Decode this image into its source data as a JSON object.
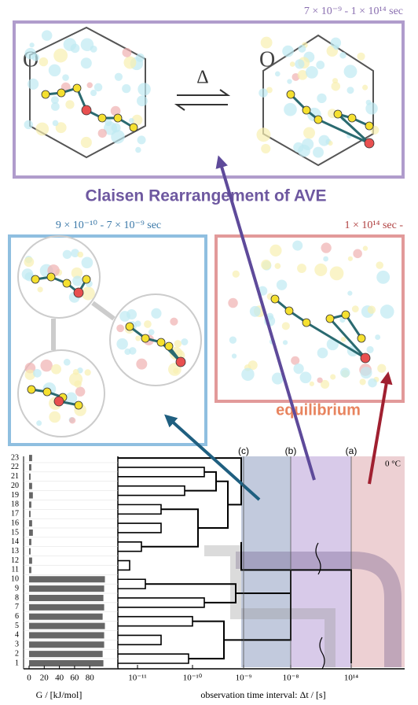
{
  "panels": {
    "top": {
      "time_label": "7 × 10⁻⁹ - 1 × 10¹⁴  sec",
      "atom_left": "O",
      "atom_right": "O",
      "arrow_label": "Δ"
    },
    "title": "Claisen Rearrangement of  AVE",
    "left": {
      "time_label": "9 × 10⁻¹⁰ - 7 × 10⁻⁹ sec"
    },
    "right": {
      "time_label": "1 × 10¹⁴  sec -",
      "caption": "equilibrium"
    }
  },
  "plot": {
    "states": [
      1,
      2,
      3,
      4,
      5,
      6,
      7,
      8,
      9,
      10,
      11,
      12,
      13,
      14,
      15,
      16,
      17,
      18,
      19,
      20,
      21,
      22,
      23
    ],
    "energies": [
      98,
      97,
      99,
      99,
      100,
      97,
      99,
      98,
      99,
      100,
      3,
      4,
      2,
      3,
      5,
      4,
      2,
      3,
      5,
      4,
      2,
      3,
      4
    ],
    "energy_lim": [
      0,
      115
    ],
    "energy_ticks": [
      0,
      20,
      40,
      60,
      80
    ],
    "energy_label": "G / [kJ/mol]",
    "time_ticks": [
      "10⁻¹¹",
      "10⁻¹⁰",
      "10⁻⁹",
      "10⁻⁸",
      "10¹⁴"
    ],
    "time_label": "observation time interval: Δt / [s]",
    "regions": [
      "(c)",
      "(b)",
      "(a)"
    ],
    "temperature": "0 °C"
  }
}
